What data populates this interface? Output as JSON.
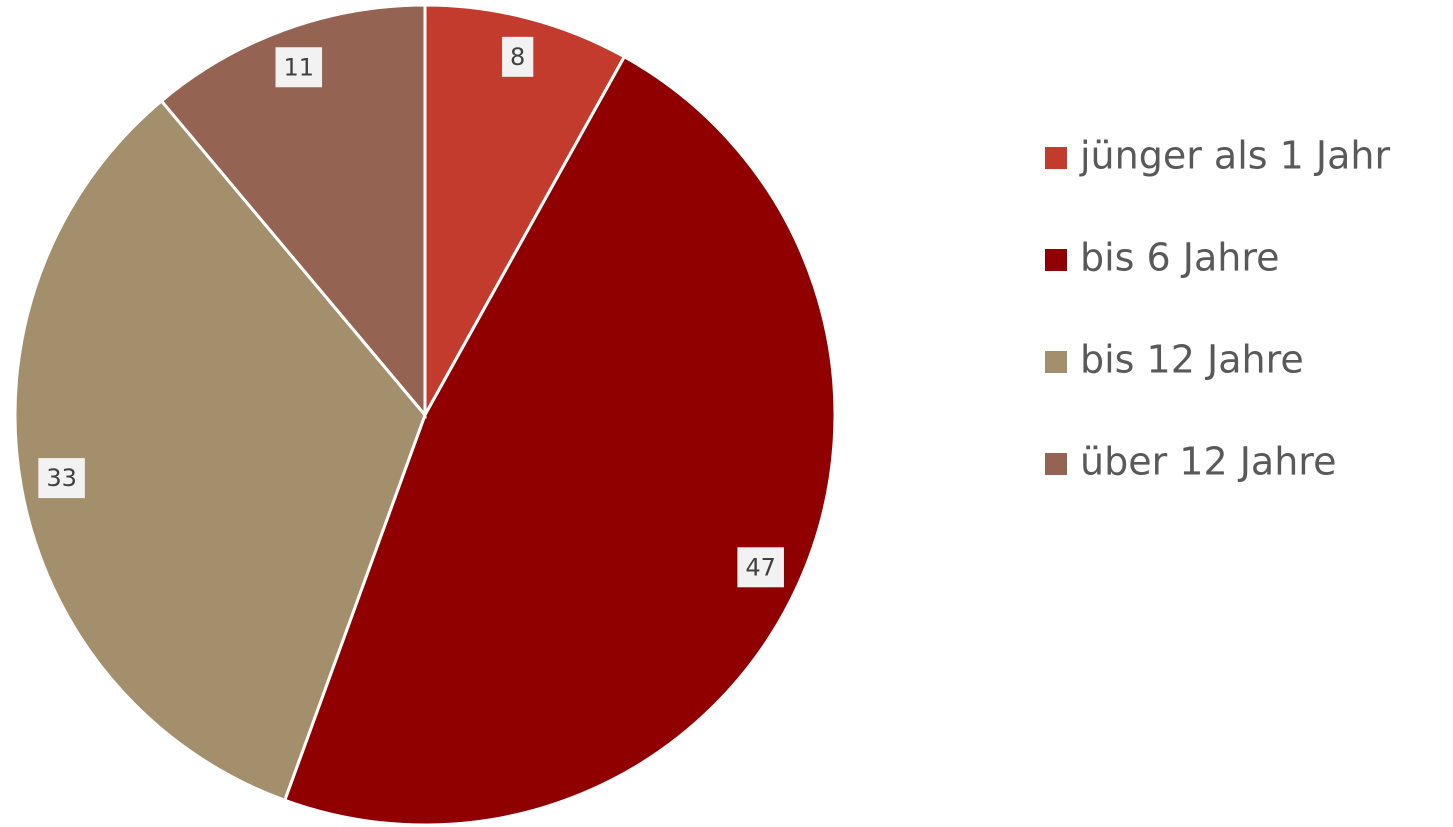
{
  "chart_data": {
    "type": "pie",
    "categories": [
      "jünger als 1 Jahr",
      "bis 6 Jahre",
      "bis 12 Jahre",
      "über 12 Jahre"
    ],
    "values": [
      8,
      47,
      33,
      11
    ],
    "colors": [
      "#c33b2c",
      "#900000",
      "#a48f6d",
      "#946352"
    ],
    "legend": "right"
  }
}
